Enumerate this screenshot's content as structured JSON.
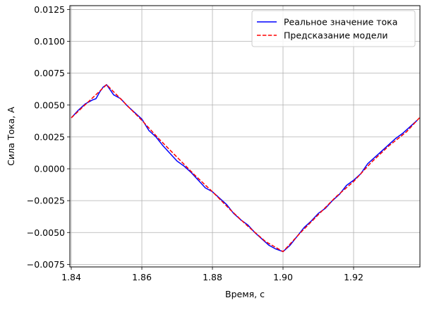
{
  "chart_data": {
    "type": "line",
    "xlabel": "Время, с",
    "ylabel": "Сила Тока, А",
    "xlim": [
      1.8396,
      1.9388
    ],
    "ylim": [
      -0.0077,
      0.0128
    ],
    "grid": true,
    "legend_position": "top-right",
    "x_ticks": [
      "1.84",
      "1.86",
      "1.88",
      "1.90",
      "1.92"
    ],
    "y_ticks": [
      "−0.0075",
      "−0.0050",
      "−0.0025",
      "0.0000",
      "0.0025",
      "0.0050",
      "0.0075",
      "0.0100",
      "0.0125"
    ],
    "series": [
      {
        "name": "Реальное значение тока",
        "color": "#0000ff",
        "style": "solid",
        "x": [
          1.84,
          1.842,
          1.844,
          1.846,
          1.847,
          1.848,
          1.849,
          1.85,
          1.851,
          1.852,
          1.854,
          1.856,
          1.858,
          1.86,
          1.862,
          1.864,
          1.866,
          1.868,
          1.87,
          1.872,
          1.874,
          1.876,
          1.878,
          1.88,
          1.882,
          1.884,
          1.886,
          1.888,
          1.89,
          1.892,
          1.894,
          1.896,
          1.898,
          1.9,
          1.902,
          1.904,
          1.906,
          1.908,
          1.91,
          1.912,
          1.914,
          1.916,
          1.918,
          1.92,
          1.922,
          1.924,
          1.926,
          1.928,
          1.93,
          1.932,
          1.934,
          1.936,
          1.938
        ],
        "y": [
          0.004,
          0.0046,
          0.0051,
          0.0054,
          0.0055,
          0.006,
          0.0064,
          0.0066,
          0.0062,
          0.0058,
          0.0055,
          0.0049,
          0.0044,
          0.0039,
          0.003,
          0.0025,
          0.0018,
          0.0012,
          0.0006,
          0.0002,
          -0.0003,
          -0.0009,
          -0.0015,
          -0.0018,
          -0.0023,
          -0.0028,
          -0.0035,
          -0.004,
          -0.0044,
          -0.005,
          -0.0055,
          -0.006,
          -0.0063,
          -0.0065,
          -0.006,
          -0.0053,
          -0.0046,
          -0.0041,
          -0.0035,
          -0.0031,
          -0.0025,
          -0.002,
          -0.0013,
          -0.0009,
          -0.0004,
          0.0004,
          0.0009,
          0.0014,
          0.0019,
          0.0024,
          0.0028,
          0.0033,
          0.0038
        ]
      },
      {
        "name": "Предсказание модели",
        "color": "#ff0000",
        "style": "dashed",
        "x": [
          1.84,
          1.845,
          1.85,
          1.855,
          1.86,
          1.865,
          1.87,
          1.875,
          1.88,
          1.885,
          1.89,
          1.895,
          1.9,
          1.905,
          1.91,
          1.915,
          1.92,
          1.925,
          1.93,
          1.935,
          1.939
        ],
        "y": [
          0.004,
          0.0053,
          0.0066,
          0.0052,
          0.0038,
          0.0023,
          0.0009,
          -0.0005,
          -0.0018,
          -0.0032,
          -0.0045,
          -0.0057,
          -0.0065,
          -0.005,
          -0.0036,
          -0.0022,
          -0.001,
          0.0005,
          0.0018,
          0.0029,
          0.0041
        ]
      }
    ]
  }
}
